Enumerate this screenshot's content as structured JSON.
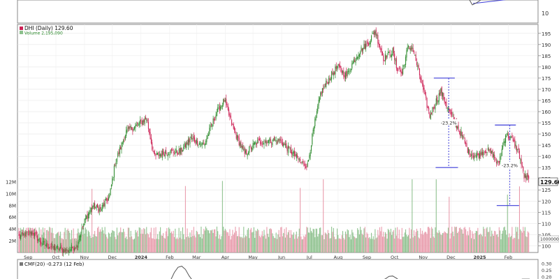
{
  "chart_data": {
    "type": "candlestick",
    "title": "DHI (Daily) 129.60",
    "ticker": "DHI",
    "period": "Daily",
    "last_price": "129.60",
    "volume_label": "Volume 2,195,090",
    "price_axis": {
      "ylim": [
        97,
        199
      ],
      "ticks": [
        100,
        105,
        110,
        115,
        120,
        125,
        130,
        135,
        140,
        145,
        150,
        155,
        160,
        165,
        170,
        175,
        180,
        185,
        190,
        195
      ],
      "last_tag": "129.60",
      "volume_tag": "1000000"
    },
    "volume_axis": {
      "ylim": [
        0,
        13000000
      ],
      "ticks": [
        {
          "v": 2000000,
          "t": "2M"
        },
        {
          "v": 4000000,
          "t": "4M"
        },
        {
          "v": 6000000,
          "t": "6M"
        },
        {
          "v": 8000000,
          "t": "8M"
        },
        {
          "v": 10000000,
          "t": "10M"
        },
        {
          "v": 12000000,
          "t": "12M"
        }
      ]
    },
    "x_labels": [
      {
        "t": "Sep",
        "d": 10,
        "bold": false
      },
      {
        "t": "Oct",
        "d": 40,
        "bold": false
      },
      {
        "t": "Nov",
        "d": 71,
        "bold": false
      },
      {
        "t": "Dec",
        "d": 101,
        "bold": false
      },
      {
        "t": "2024",
        "d": 132,
        "bold": true
      },
      {
        "t": "Feb",
        "d": 163,
        "bold": false
      },
      {
        "t": "Mar",
        "d": 192,
        "bold": false
      },
      {
        "t": "Apr",
        "d": 223,
        "bold": false
      },
      {
        "t": "May",
        "d": 253,
        "bold": false
      },
      {
        "t": "Jun",
        "d": 284,
        "bold": false
      },
      {
        "t": "Jul",
        "d": 314,
        "bold": false
      },
      {
        "t": "Aug",
        "d": 345,
        "bold": false
      },
      {
        "t": "Sep",
        "d": 376,
        "bold": false
      },
      {
        "t": "Oct",
        "d": 406,
        "bold": false
      },
      {
        "t": "Nov",
        "d": 437,
        "bold": false
      },
      {
        "t": "Dec",
        "d": 467,
        "bold": false
      },
      {
        "t": "2025",
        "d": 498,
        "bold": true
      },
      {
        "t": "Feb",
        "d": 529,
        "bold": false
      }
    ],
    "anchors": [
      [
        0,
        104
      ],
      [
        15,
        106
      ],
      [
        25,
        101
      ],
      [
        38,
        99
      ],
      [
        52,
        98
      ],
      [
        62,
        100
      ],
      [
        72,
        112
      ],
      [
        80,
        118
      ],
      [
        88,
        116
      ],
      [
        98,
        122
      ],
      [
        104,
        137
      ],
      [
        116,
        151
      ],
      [
        128,
        154
      ],
      [
        138,
        157
      ],
      [
        146,
        140
      ],
      [
        160,
        142
      ],
      [
        174,
        142
      ],
      [
        186,
        148
      ],
      [
        200,
        145
      ],
      [
        214,
        160
      ],
      [
        222,
        165
      ],
      [
        232,
        152
      ],
      [
        244,
        141
      ],
      [
        256,
        146
      ],
      [
        270,
        147
      ],
      [
        282,
        147
      ],
      [
        292,
        143
      ],
      [
        306,
        137
      ],
      [
        312,
        136
      ],
      [
        318,
        151
      ],
      [
        326,
        168
      ],
      [
        334,
        174
      ],
      [
        344,
        180
      ],
      [
        354,
        176
      ],
      [
        362,
        183
      ],
      [
        368,
        187
      ],
      [
        376,
        190
      ],
      [
        385,
        196
      ],
      [
        394,
        184
      ],
      [
        404,
        187
      ],
      [
        408,
        180
      ],
      [
        414,
        177
      ],
      [
        420,
        188
      ],
      [
        425,
        189
      ],
      [
        432,
        178
      ],
      [
        438,
        168
      ],
      [
        444,
        158
      ],
      [
        450,
        164
      ],
      [
        456,
        169
      ],
      [
        464,
        161
      ],
      [
        470,
        156
      ],
      [
        478,
        150
      ],
      [
        486,
        142
      ],
      [
        494,
        140
      ],
      [
        504,
        143
      ],
      [
        512,
        141
      ],
      [
        518,
        136
      ],
      [
        526,
        150
      ],
      [
        532,
        148
      ],
      [
        540,
        142
      ],
      [
        546,
        131
      ],
      [
        551,
        130
      ]
    ],
    "volume_events": [
      [
        79,
        1.6
      ],
      [
        180,
        2.4
      ],
      [
        220,
        1.6
      ],
      [
        304,
        2.0
      ],
      [
        329,
        2.6
      ],
      [
        425,
        2.2
      ],
      [
        451,
        2.1
      ],
      [
        465,
        1.5
      ],
      [
        528,
        1.7
      ],
      [
        541,
        1.6
      ]
    ],
    "annotations": [
      {
        "type": "measure",
        "label": "-23.2%",
        "from_d": 459,
        "from_v": 175,
        "to_d": 470,
        "to_v": 135
      },
      {
        "type": "measure",
        "label": "-23.2%",
        "from_d": 525,
        "from_v": 154,
        "to_d": 536,
        "to_v": 118
      }
    ],
    "indicator": {
      "label": "CMF(20) -0.273 (12 Feb)",
      "ticks": [
        {
          "v": 0.3,
          "t": "0.30"
        },
        {
          "v": 0.25,
          "t": "0.25"
        },
        {
          "v": 0.2,
          "t": "0.20"
        }
      ]
    },
    "top_panel_tag": "10",
    "colors": {
      "up": "#2e8b2e",
      "down": "#cc2255",
      "vol_up": "#8cc08c",
      "vol_down": "#e899aa",
      "measure": "#3c3cd8",
      "indicator": "#555555"
    }
  }
}
